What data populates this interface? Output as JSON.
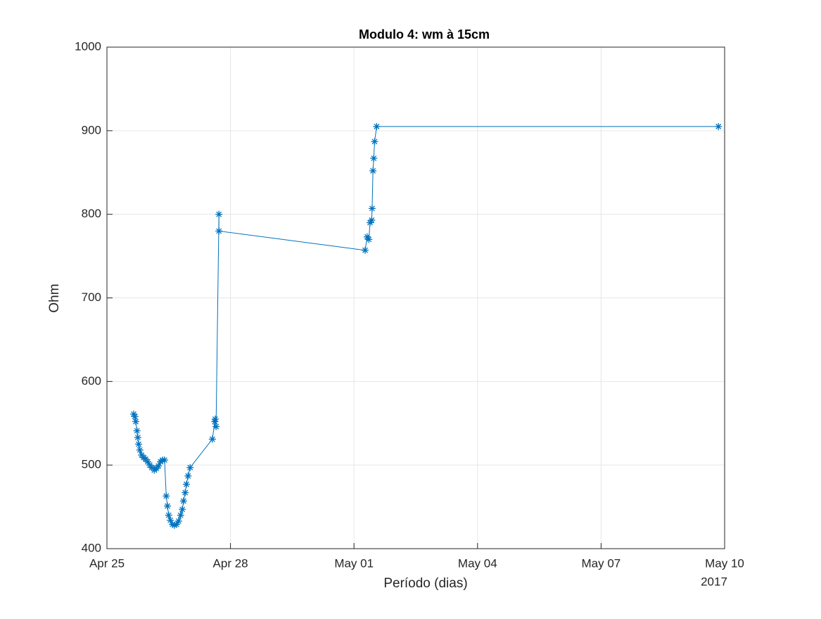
{
  "chart_data": {
    "type": "line",
    "title": "Modulo 4: wm à 15cm",
    "x_label": "Período (dias)",
    "y_label": "Ohm",
    "x_year_label": "2017",
    "x": [
      0.65,
      0.68,
      0.7,
      0.73,
      0.75,
      0.77,
      0.8,
      0.84,
      0.89,
      0.94,
      0.99,
      1.04,
      1.09,
      1.15,
      1.2,
      1.25,
      1.3,
      1.35,
      1.4,
      1.44,
      1.47,
      1.5,
      1.54,
      1.59,
      1.64,
      1.69,
      1.74,
      1.79,
      1.83,
      1.86,
      1.9,
      1.93,
      1.97,
      2.02,
      2.56,
      2.62,
      2.63,
      2.65,
      2.72,
      2.72,
      6.27,
      6.32,
      6.36,
      6.39,
      6.43,
      6.44,
      6.46,
      6.48,
      6.5,
      6.55,
      14.85
    ],
    "series": [
      {
        "name": "wm 15cm",
        "color": "#0072bd",
        "values": [
          561,
          558,
          552,
          541,
          533,
          525,
          518,
          512,
          509,
          507,
          504,
          500,
          497,
          494,
          496,
          499,
          504,
          506,
          506,
          463,
          451,
          440,
          434,
          429,
          428,
          429,
          433,
          440,
          447,
          457,
          467,
          477,
          487,
          497,
          531,
          552,
          555,
          546,
          800,
          780,
          757,
          773,
          770,
          790,
          793,
          807,
          852,
          867,
          887,
          905,
          905
        ]
      }
    ],
    "xlim": [
      0,
      15
    ],
    "xticks": [
      {
        "value": 0,
        "label": "Apr 25"
      },
      {
        "value": 3,
        "label": "Apr 28"
      },
      {
        "value": 6,
        "label": "May 01"
      },
      {
        "value": 9,
        "label": "May 04"
      },
      {
        "value": 12,
        "label": "May 07"
      },
      {
        "value": 15,
        "label": "May 10"
      }
    ],
    "ylim": [
      400,
      1000
    ],
    "yticks": [
      400,
      500,
      600,
      700,
      800,
      900,
      1000
    ],
    "grid": true
  }
}
